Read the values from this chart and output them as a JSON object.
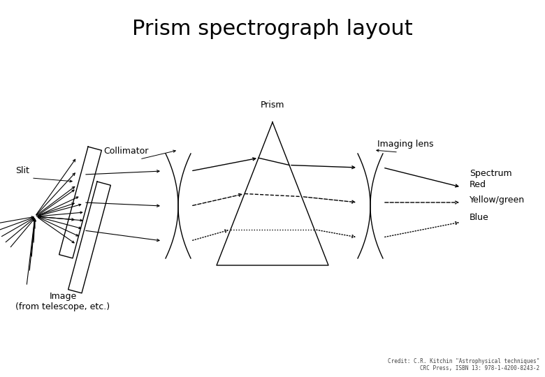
{
  "title": "Prism spectrograph layout",
  "title_fontsize": 22,
  "credit_line1": "Credit: C.R. Kitchin \"Astrophysical techniques\"",
  "credit_line2": "CRC Press, ISBN 13: 978-1-4200-8243-2",
  "bg_color": "#ffffff",
  "line_color": "#000000",
  "labels": {
    "slit": "Slit",
    "collimator": "Collimator",
    "prism": "Prism",
    "imaging_lens": "Imaging lens",
    "spectrum": "Spectrum",
    "red": "Red",
    "yellow_green": "Yellow/green",
    "blue": "Blue",
    "image": "Image\n(from telescope, etc.)"
  }
}
